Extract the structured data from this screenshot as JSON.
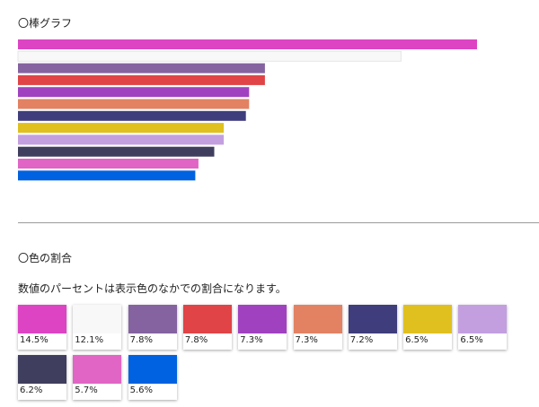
{
  "bar_section": {
    "heading": "〇棒グラフ"
  },
  "ratio_section": {
    "heading": "〇色の割合",
    "note": "数値のパーセントは表示色のなかでの割合になります。"
  },
  "chart_data": {
    "type": "bar",
    "orientation": "horizontal",
    "values": [
      14.5,
      12.1,
      7.8,
      7.8,
      7.3,
      7.3,
      7.2,
      6.5,
      6.5,
      6.2,
      5.7,
      5.6
    ],
    "colors": [
      "#dd44c4",
      "#f8f8f8",
      "#8463a0",
      "#e04446",
      "#a042c0",
      "#e28263",
      "#3f3d7c",
      "#e0c01e",
      "#c39fe0",
      "#3f3e5e",
      "#e065c4",
      "#0062e0"
    ],
    "labels": [
      "14.5%",
      "12.1%",
      "7.8%",
      "7.8%",
      "7.3%",
      "7.3%",
      "7.2%",
      "6.5%",
      "6.5%",
      "6.2%",
      "5.7%",
      "5.6%"
    ],
    "grid": false,
    "legend": "none"
  }
}
